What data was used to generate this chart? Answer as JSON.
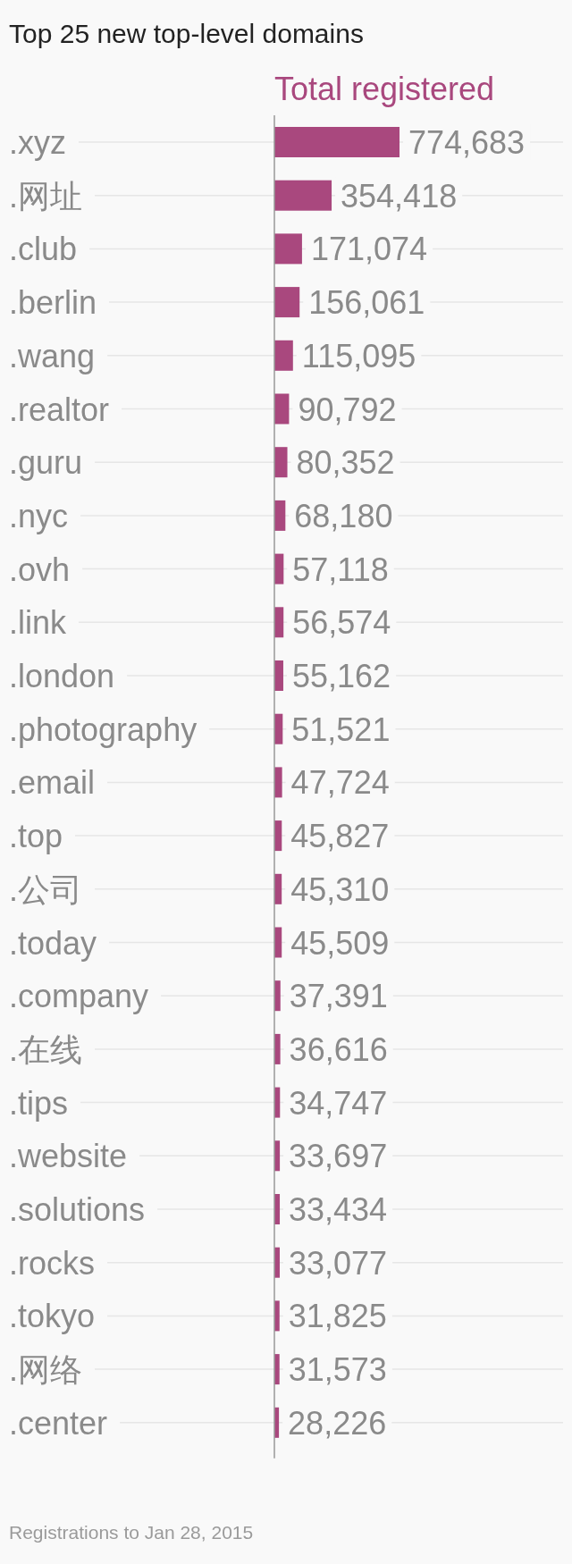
{
  "chart_data": {
    "type": "bar",
    "orientation": "horizontal",
    "title": "Top 25 new top-level domains",
    "categories": [
      ".xyz",
      ".网址",
      ".club",
      ".berlin",
      ".wang",
      ".realtor",
      ".guru",
      ".nyc",
      ".ovh",
      ".link",
      ".london",
      ".photography",
      ".email",
      ".top",
      ".公司",
      ".today",
      ".company",
      ".在线",
      ".tips",
      ".website",
      ".solutions",
      ".rocks",
      ".tokyo",
      ".网络",
      ".center"
    ],
    "series": [
      {
        "name": "Total registered",
        "color": "#a9487e",
        "values": [
          774683,
          354418,
          171074,
          156061,
          115095,
          90792,
          80352,
          68180,
          57118,
          56574,
          55162,
          51521,
          47724,
          45827,
          45310,
          45509,
          37391,
          36616,
          34747,
          33697,
          33434,
          33077,
          31825,
          31573,
          28226
        ],
        "value_labels": [
          "774,683",
          "354,418",
          "171,074",
          "156,061",
          "115,095",
          "90,792",
          "80,352",
          "68,180",
          "57,118",
          "56,574",
          "55,162",
          "51,521",
          "47,724",
          "45,827",
          "45,310",
          "45,509",
          "37,391",
          "36,616",
          "34,747",
          "33,697",
          "33,434",
          "33,077",
          "31,825",
          "31,573",
          "28,226"
        ]
      }
    ],
    "grid": "y",
    "annotations": [
      "Registrations to Jan 28, 2015"
    ]
  }
}
